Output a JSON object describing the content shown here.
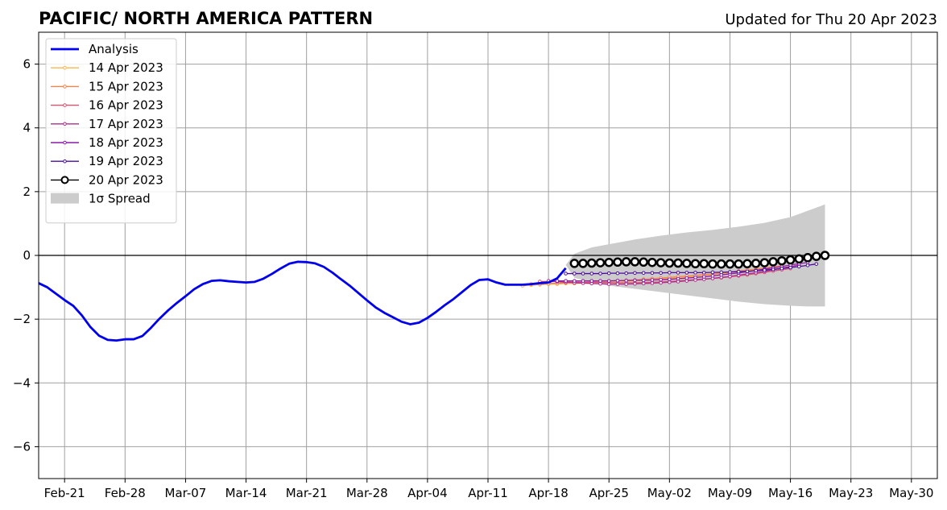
{
  "chart_data": {
    "type": "line",
    "title": "PACIFIC/ NORTH AMERICA PATTERN",
    "subtitle": "Updated for Thu 20 Apr 2023",
    "xlabel": "",
    "ylabel": "",
    "xlim": [
      "2023-02-18",
      "2023-06-02"
    ],
    "ylim": [
      -7,
      7
    ],
    "yticks": [
      -6,
      -4,
      -2,
      0,
      2,
      4,
      6
    ],
    "ytick_labels": [
      "−6",
      "−4",
      "−2",
      "0",
      "2",
      "4",
      "6"
    ],
    "xticks": [
      "2023-02-21",
      "2023-02-28",
      "2023-03-07",
      "2023-03-14",
      "2023-03-21",
      "2023-03-28",
      "2023-04-04",
      "2023-04-11",
      "2023-04-18",
      "2023-04-25",
      "2023-05-02",
      "2023-05-09",
      "2023-05-16",
      "2023-05-23",
      "2023-05-30"
    ],
    "xtick_labels": [
      "Feb-21",
      "Feb-28",
      "Mar-07",
      "Mar-14",
      "Mar-21",
      "Mar-28",
      "Apr-04",
      "Apr-11",
      "Apr-18",
      "Apr-25",
      "May-02",
      "May-09",
      "May-16",
      "May-23",
      "May-30"
    ],
    "grid": true,
    "legend_position": "top-left",
    "analysis": {
      "name": "Analysis",
      "color": "#0000ee",
      "x": [
        "2023-02-18",
        "2023-02-19",
        "2023-02-20",
        "2023-02-21",
        "2023-02-22",
        "2023-02-23",
        "2023-02-24",
        "2023-02-25",
        "2023-02-26",
        "2023-02-27",
        "2023-02-28",
        "2023-03-01",
        "2023-03-02",
        "2023-03-03",
        "2023-03-04",
        "2023-03-05",
        "2023-03-06",
        "2023-03-07",
        "2023-03-08",
        "2023-03-09",
        "2023-03-10",
        "2023-03-11",
        "2023-03-12",
        "2023-03-13",
        "2023-03-14",
        "2023-03-15",
        "2023-03-16",
        "2023-03-17",
        "2023-03-18",
        "2023-03-19",
        "2023-03-20",
        "2023-03-21",
        "2023-03-22",
        "2023-03-23",
        "2023-03-24",
        "2023-03-25",
        "2023-03-26",
        "2023-03-27",
        "2023-03-28",
        "2023-03-29",
        "2023-03-30",
        "2023-03-31",
        "2023-04-01",
        "2023-04-02",
        "2023-04-03",
        "2023-04-04",
        "2023-04-05",
        "2023-04-06",
        "2023-04-07",
        "2023-04-08",
        "2023-04-09",
        "2023-04-10",
        "2023-04-11",
        "2023-04-12",
        "2023-04-13",
        "2023-04-14",
        "2023-04-15",
        "2023-04-16",
        "2023-04-17",
        "2023-04-18",
        "2023-04-19",
        "2023-04-20"
      ],
      "values": [
        -0.87,
        -1.0,
        -1.2,
        -1.4,
        -1.58,
        -1.88,
        -2.25,
        -2.52,
        -2.65,
        -2.67,
        -2.63,
        -2.63,
        -2.53,
        -2.27,
        -1.98,
        -1.72,
        -1.49,
        -1.28,
        -1.06,
        -0.9,
        -0.8,
        -0.78,
        -0.81,
        -0.83,
        -0.85,
        -0.83,
        -0.73,
        -0.58,
        -0.41,
        -0.26,
        -0.2,
        -0.21,
        -0.25,
        -0.36,
        -0.54,
        -0.75,
        -0.95,
        -1.18,
        -1.41,
        -1.63,
        -1.8,
        -1.94,
        -2.08,
        -2.16,
        -2.11,
        -1.96,
        -1.77,
        -1.56,
        -1.37,
        -1.15,
        -0.93,
        -0.77,
        -0.75,
        -0.85,
        -0.92,
        -0.92,
        -0.92,
        -0.9,
        -0.87,
        -0.85,
        -0.72,
        -0.4
      ]
    },
    "spread": {
      "name": "1σ Spread",
      "color": "#cccccc",
      "x": [
        "2023-04-20",
        "2023-04-21",
        "2023-04-23",
        "2023-04-25",
        "2023-04-28",
        "2023-05-01",
        "2023-05-04",
        "2023-05-07",
        "2023-05-10",
        "2023-05-13",
        "2023-05-16",
        "2023-05-18",
        "2023-05-20"
      ],
      "upper": [
        -0.3,
        0.05,
        0.25,
        0.35,
        0.5,
        0.62,
        0.72,
        0.8,
        0.9,
        1.02,
        1.2,
        1.4,
        1.6
      ],
      "lower": [
        -0.3,
        -0.7,
        -0.85,
        -0.95,
        -1.05,
        -1.15,
        -1.25,
        -1.35,
        -1.45,
        -1.53,
        -1.58,
        -1.6,
        -1.6
      ]
    },
    "forecasts": [
      {
        "name": "14 Apr 2023",
        "color": "#fdb44c",
        "start": "2023-04-15",
        "values": [
          -0.95,
          -0.93,
          -0.92,
          -0.9,
          -0.9,
          -0.88,
          -0.88,
          -0.87,
          -0.85,
          -0.85,
          -0.85,
          -0.84,
          -0.82,
          -0.8,
          -0.78,
          -0.76,
          -0.74,
          -0.72,
          -0.7,
          -0.68,
          -0.65,
          -0.62,
          -0.6,
          -0.57,
          -0.54,
          -0.5,
          -0.47,
          -0.43,
          -0.4,
          -0.35
        ]
      },
      {
        "name": "15 Apr 2023",
        "color": "#f1844b",
        "start": "2023-04-16",
        "values": [
          -0.9,
          -0.89,
          -0.88,
          -0.87,
          -0.86,
          -0.85,
          -0.84,
          -0.83,
          -0.82,
          -0.81,
          -0.8,
          -0.78,
          -0.77,
          -0.75,
          -0.73,
          -0.71,
          -0.69,
          -0.67,
          -0.65,
          -0.63,
          -0.6,
          -0.58,
          -0.55,
          -0.52,
          -0.49,
          -0.46,
          -0.43,
          -0.4,
          -0.36,
          -0.32
        ]
      },
      {
        "name": "16 Apr 2023",
        "color": "#d5536f",
        "start": "2023-04-17",
        "values": [
          -0.82,
          -0.82,
          -0.82,
          -0.83,
          -0.83,
          -0.84,
          -0.84,
          -0.85,
          -0.85,
          -0.86,
          -0.86,
          -0.86,
          -0.85,
          -0.84,
          -0.83,
          -0.82,
          -0.8,
          -0.78,
          -0.76,
          -0.74,
          -0.72,
          -0.7,
          -0.67,
          -0.64,
          -0.61,
          -0.57,
          -0.53,
          -0.49,
          -0.45,
          -0.41
        ]
      },
      {
        "name": "17 Apr 2023",
        "color": "#ad2d8c",
        "start": "2023-04-18",
        "values": [
          -0.8,
          -0.82,
          -0.84,
          -0.86,
          -0.87,
          -0.88,
          -0.89,
          -0.9,
          -0.9,
          -0.9,
          -0.89,
          -0.88,
          -0.87,
          -0.86,
          -0.84,
          -0.82,
          -0.8,
          -0.77,
          -0.75,
          -0.72,
          -0.69,
          -0.66,
          -0.62,
          -0.58,
          -0.54,
          -0.5,
          -0.45,
          -0.4,
          -0.35,
          -0.3
        ]
      },
      {
        "name": "18 Apr 2023",
        "color": "#8a1aa8",
        "start": "2023-04-19",
        "values": [
          -0.8,
          -0.8,
          -0.8,
          -0.8,
          -0.8,
          -0.8,
          -0.8,
          -0.79,
          -0.79,
          -0.78,
          -0.78,
          -0.77,
          -0.76,
          -0.75,
          -0.73,
          -0.71,
          -0.69,
          -0.67,
          -0.64,
          -0.61,
          -0.58,
          -0.55,
          -0.51,
          -0.47,
          -0.43,
          -0.39,
          -0.35,
          -0.3,
          -0.26,
          -0.22
        ]
      },
      {
        "name": "19 Apr 2023",
        "color": "#4a0c9c",
        "start": "2023-04-20",
        "values": [
          -0.57,
          -0.57,
          -0.57,
          -0.57,
          -0.57,
          -0.56,
          -0.56,
          -0.56,
          -0.55,
          -0.55,
          -0.55,
          -0.55,
          -0.54,
          -0.54,
          -0.54,
          -0.54,
          -0.54,
          -0.53,
          -0.53,
          -0.52,
          -0.51,
          -0.5,
          -0.48,
          -0.46,
          -0.44,
          -0.41,
          -0.38,
          -0.35,
          -0.31,
          -0.27
        ]
      },
      {
        "name": "20 Apr 2023",
        "color": "#000000",
        "start": "2023-04-21",
        "values": [
          -0.25,
          -0.25,
          -0.24,
          -0.23,
          -0.22,
          -0.21,
          -0.2,
          -0.2,
          -0.21,
          -0.22,
          -0.23,
          -0.24,
          -0.24,
          -0.25,
          -0.26,
          -0.26,
          -0.27,
          -0.27,
          -0.27,
          -0.27,
          -0.26,
          -0.25,
          -0.23,
          -0.2,
          -0.17,
          -0.14,
          -0.11,
          -0.07,
          -0.03,
          0.0
        ]
      }
    ]
  }
}
